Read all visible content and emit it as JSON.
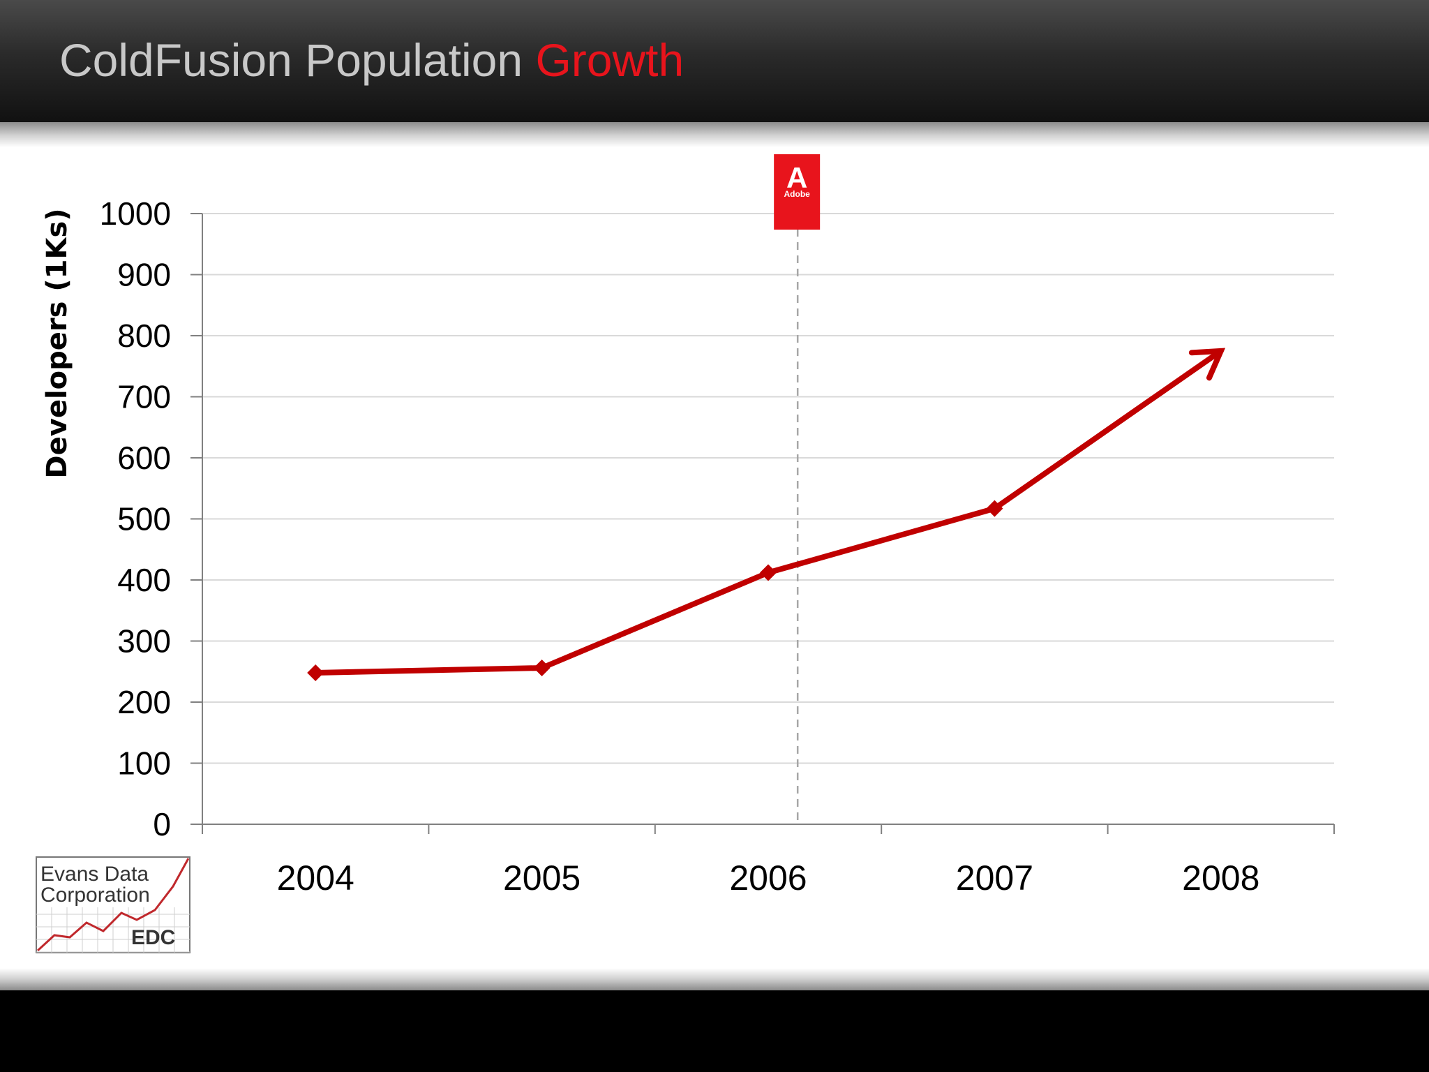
{
  "slide": {
    "title_main": "ColdFusion Population",
    "title_accent": "Growth"
  },
  "colors": {
    "title_text": "#c8c8c8",
    "accent": "#e8141c",
    "line": "#c00000",
    "grid": "#d9d9d9",
    "marker_line": "#a6a6a6",
    "adobe_red": "#e8141c"
  },
  "adobe_badge": {
    "glyph": "A",
    "label": "Adobe",
    "icon": "adobe-logo-icon",
    "position_x": 2006.13
  },
  "edc_logo": {
    "line1": "Evans Data",
    "line2": "Corporation",
    "abbr": "EDC",
    "icon": "edc-logo-icon"
  },
  "chart_data": {
    "type": "line",
    "categories": [
      "2004",
      "2005",
      "2006",
      "2007",
      "2008"
    ],
    "series": [
      {
        "values": [
          248,
          256,
          412,
          517,
          775
        ],
        "markers": [
          true,
          true,
          true,
          true,
          false
        ],
        "ends_with_arrow": true
      }
    ],
    "ylabel": "Developers (1Ks)",
    "xlabel": "",
    "ylim": [
      0,
      1000
    ],
    "yticks": [
      "0",
      "100",
      "200",
      "300",
      "400",
      "500",
      "600",
      "700",
      "800",
      "900",
      "1000"
    ],
    "grid": true,
    "legend": "none",
    "annotation": {
      "type": "vertical-dashed-line",
      "x": 2006.13,
      "label": "Adobe"
    }
  }
}
